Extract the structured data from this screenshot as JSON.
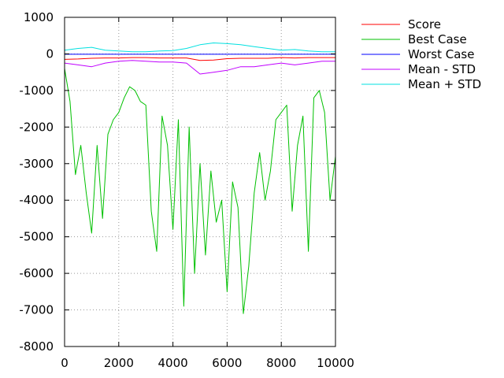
{
  "chart_data": {
    "type": "line",
    "title": "",
    "xlabel": "",
    "ylabel": "",
    "xlim": [
      0,
      10000
    ],
    "ylim": [
      -8000,
      1000
    ],
    "xticks": [
      0,
      2000,
      4000,
      6000,
      8000,
      10000
    ],
    "yticks": [
      -8000,
      -7000,
      -6000,
      -5000,
      -4000,
      -3000,
      -2000,
      -1000,
      0,
      1000
    ],
    "grid": true,
    "legend_position": "top-right outside plot",
    "series": [
      {
        "name": "Score",
        "color": "#ff0000",
        "x": [
          0,
          500,
          1000,
          1500,
          2000,
          2500,
          3000,
          3500,
          4000,
          4500,
          5000,
          5500,
          6000,
          6500,
          7000,
          7500,
          8000,
          8500,
          9000,
          9500,
          10000
        ],
        "values": [
          -150,
          -140,
          -120,
          -110,
          -110,
          -100,
          -100,
          -110,
          -110,
          -110,
          -180,
          -170,
          -130,
          -120,
          -120,
          -120,
          -100,
          -110,
          -100,
          -100,
          -100
        ]
      },
      {
        "name": "Best Case",
        "color": "#00c000",
        "x": [
          0,
          200,
          400,
          600,
          800,
          1000,
          1200,
          1400,
          1600,
          1800,
          2000,
          2200,
          2400,
          2600,
          2800,
          3000,
          3200,
          3400,
          3600,
          3800,
          4000,
          4200,
          4400,
          4600,
          4800,
          5000,
          5200,
          5400,
          5600,
          5800,
          6000,
          6200,
          6400,
          6600,
          6800,
          7000,
          7200,
          7400,
          7600,
          7800,
          8000,
          8200,
          8400,
          8600,
          8800,
          9000,
          9200,
          9400,
          9600,
          9800,
          10000
        ],
        "values": [
          -400,
          -1300,
          -3300,
          -2500,
          -3800,
          -4900,
          -2500,
          -4500,
          -2200,
          -1800,
          -1600,
          -1200,
          -900,
          -1000,
          -1300,
          -1400,
          -4300,
          -5400,
          -1700,
          -2500,
          -4800,
          -1800,
          -6900,
          -2000,
          -6000,
          -3000,
          -5500,
          -3200,
          -4600,
          -4000,
          -6500,
          -3500,
          -4200,
          -7100,
          -5800,
          -3800,
          -2700,
          -4000,
          -3200,
          -1800,
          -1600,
          -1400,
          -4300,
          -2500,
          -1700,
          -5400,
          -1200,
          -1000,
          -1600,
          -4000,
          -2800
        ]
      },
      {
        "name": "Worst Case",
        "color": "#0000ff",
        "x": [
          0,
          2000,
          4000,
          6000,
          8000,
          10000
        ],
        "values": [
          -10,
          -10,
          -10,
          -10,
          -10,
          -10
        ]
      },
      {
        "name": "Mean - STD",
        "color": "#c000ff",
        "x": [
          0,
          500,
          1000,
          1500,
          2000,
          2500,
          3000,
          3500,
          4000,
          4500,
          5000,
          5500,
          6000,
          6500,
          7000,
          7500,
          8000,
          8500,
          9000,
          9500,
          10000
        ],
        "values": [
          -250,
          -300,
          -350,
          -250,
          -200,
          -180,
          -200,
          -220,
          -220,
          -250,
          -550,
          -500,
          -450,
          -350,
          -350,
          -300,
          -250,
          -300,
          -250,
          -200,
          -200
        ]
      },
      {
        "name": "Mean + STD",
        "color": "#00e0e0",
        "x": [
          0,
          500,
          1000,
          1500,
          2000,
          2500,
          3000,
          3500,
          4000,
          4500,
          5000,
          5500,
          6000,
          6500,
          7000,
          7500,
          8000,
          8500,
          9000,
          9500,
          10000
        ],
        "values": [
          100,
          150,
          180,
          100,
          80,
          60,
          60,
          80,
          90,
          150,
          250,
          300,
          280,
          250,
          200,
          150,
          100,
          120,
          80,
          60,
          60
        ]
      }
    ]
  }
}
